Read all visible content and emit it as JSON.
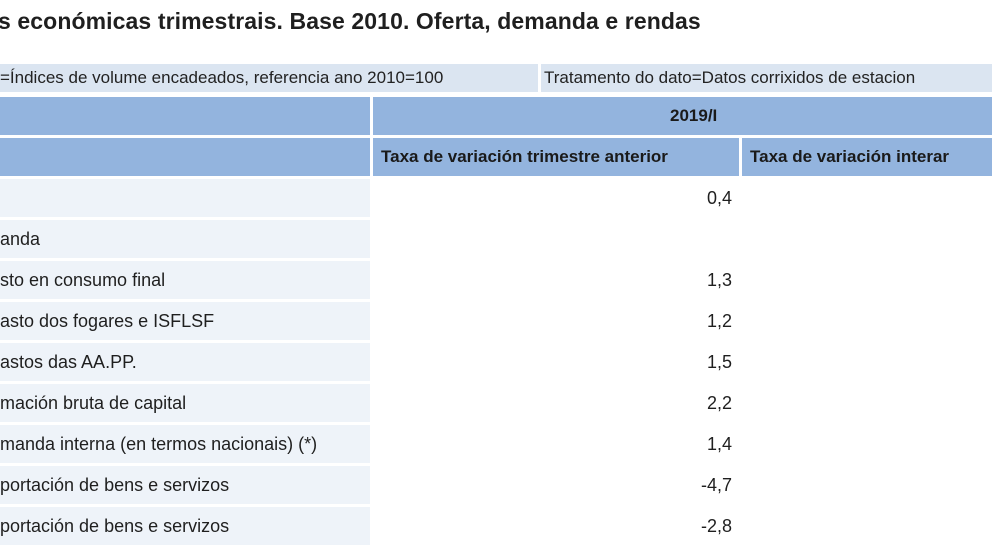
{
  "page_title": "s económicas trimestrais. Base 2010. Oferta, demanda e rendas",
  "filters": {
    "left": "=Índices de volume encadeados, referencia ano 2010=100",
    "right": "Tratamento do dato=Datos corrixidos de estacion"
  },
  "table": {
    "period_header": "2019/I",
    "columns": [
      "Taxa de variación trimestre anterior",
      "Taxa de variación interar"
    ],
    "rows": [
      {
        "label": "",
        "values": [
          "0,4",
          ""
        ]
      },
      {
        "label": "anda",
        "values": [
          "",
          ""
        ]
      },
      {
        "label": "sto en consumo final",
        "values": [
          "1,3",
          ""
        ]
      },
      {
        "label": "asto dos fogares e ISFLSF",
        "values": [
          "1,2",
          ""
        ]
      },
      {
        "label": "astos das AA.PP.",
        "values": [
          "1,5",
          ""
        ]
      },
      {
        "label": "mación bruta de capital",
        "values": [
          "2,2",
          ""
        ]
      },
      {
        "label": "manda interna (en termos nacionais) (*)",
        "values": [
          "1,4",
          ""
        ]
      },
      {
        "label": "portación de bens e servizos",
        "values": [
          "-4,7",
          ""
        ]
      },
      {
        "label": "portación de bens e servizos",
        "values": [
          "-2,8",
          ""
        ]
      }
    ]
  },
  "colors": {
    "header_bg": "#93b4de",
    "filter_bg": "#dbe5f1",
    "label_bg": "#eef3f9"
  }
}
